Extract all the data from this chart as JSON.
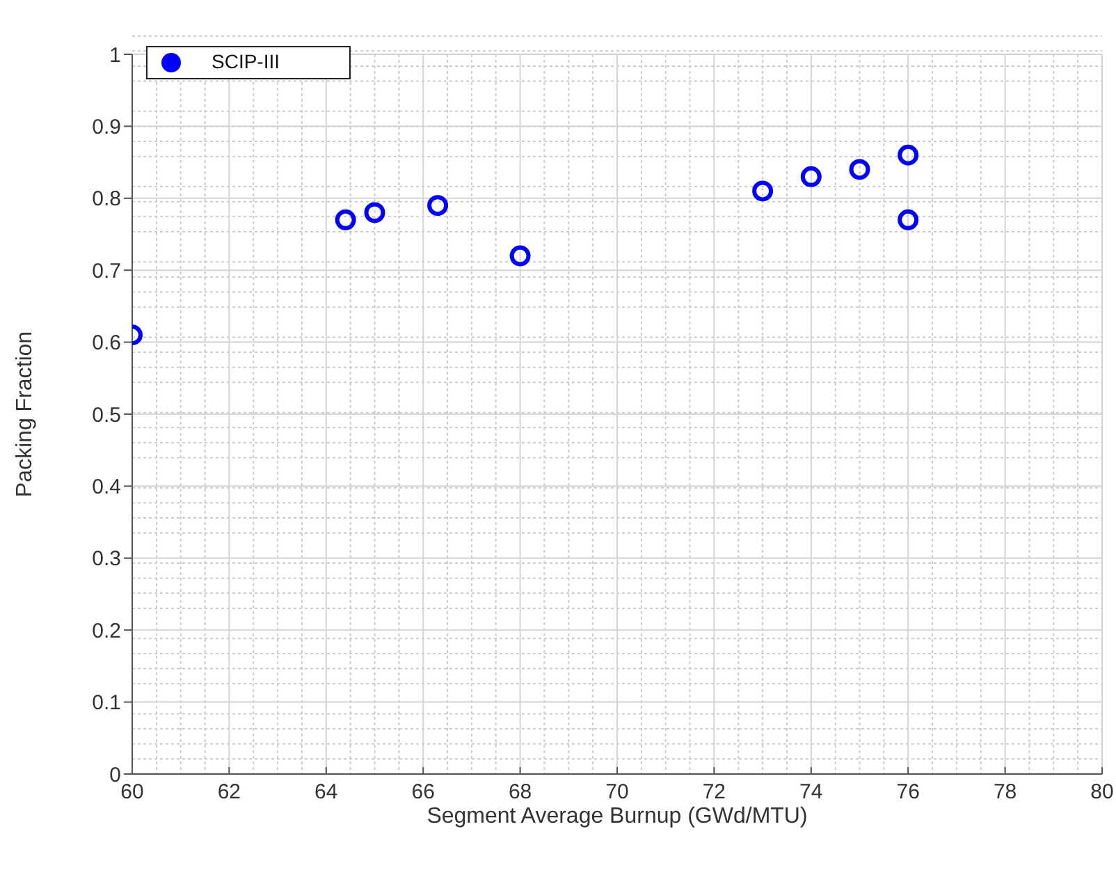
{
  "chart_data": {
    "type": "scatter",
    "xlabel": "Segment Average Burnup (GWd/MTU)",
    "ylabel": "Packing Fraction",
    "x": [
      60,
      64.4,
      65,
      66.3,
      68,
      73,
      74,
      75,
      76,
      76
    ],
    "series": [
      {
        "name": "SCIP-III",
        "color": "#0000ff",
        "values": [
          0.61,
          0.77,
          0.78,
          0.79,
          0.72,
          0.81,
          0.83,
          0.84,
          0.86,
          0.77
        ]
      }
    ],
    "xlim": [
      60,
      80
    ],
    "xticks": [
      60,
      62,
      64,
      66,
      68,
      70,
      72,
      74,
      76,
      78,
      80
    ],
    "ylim": [
      0,
      1
    ],
    "yticks": [
      0,
      0.1,
      0.2,
      0.3,
      0.4,
      0.5,
      0.6,
      0.7,
      0.8,
      0.9,
      1
    ],
    "grid": true,
    "legend": "top left",
    "marker": "circle"
  }
}
